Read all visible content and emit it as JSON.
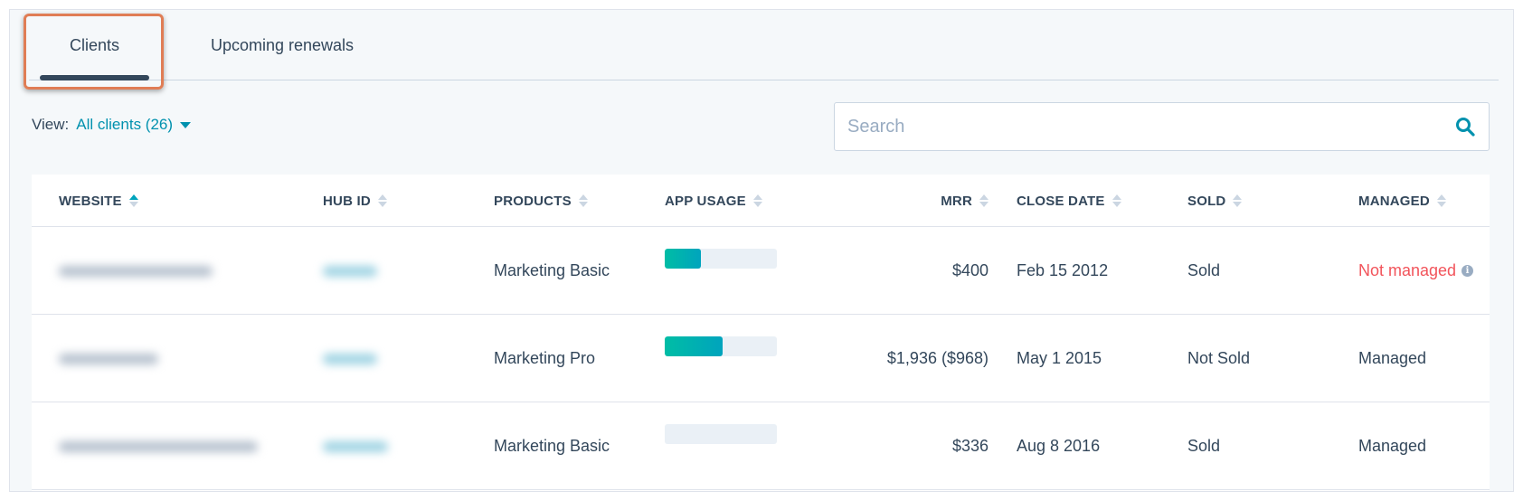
{
  "tabs": [
    {
      "label": "Clients",
      "active": true
    },
    {
      "label": "Upcoming renewals",
      "active": false
    }
  ],
  "view": {
    "label": "View:",
    "selected": "All clients (26)"
  },
  "search": {
    "placeholder": "Search",
    "icon": "search-icon"
  },
  "table": {
    "columns": [
      {
        "label": "WEBSITE",
        "sorted": "asc"
      },
      {
        "label": "HUB ID"
      },
      {
        "label": "PRODUCTS"
      },
      {
        "label": "APP USAGE"
      },
      {
        "label": "MRR"
      },
      {
        "label": "CLOSE DATE"
      },
      {
        "label": "SOLD"
      },
      {
        "label": "MANAGED"
      }
    ],
    "rows": [
      {
        "products": "Marketing Basic",
        "app_usage": 0.32,
        "mrr": "$400",
        "close_date": "Feb 15 2012",
        "sold": "Sold",
        "managed": "Not managed",
        "managed_status": "not-managed"
      },
      {
        "products": "Marketing Pro",
        "app_usage": 0.52,
        "mrr": "$1,936 ($968)",
        "close_date": "May 1 2015",
        "sold": "Not Sold",
        "managed": "Managed",
        "managed_status": "managed"
      },
      {
        "products": "Marketing Basic",
        "app_usage": 0,
        "mrr": "$336",
        "close_date": "Aug 8 2016",
        "sold": "Sold",
        "managed": "Managed",
        "managed_status": "managed"
      }
    ]
  },
  "colors": {
    "accent": "#0091ae",
    "highlight": "#e07d55",
    "not_managed": "#f2545b",
    "usage_fill": "#00bda5"
  }
}
